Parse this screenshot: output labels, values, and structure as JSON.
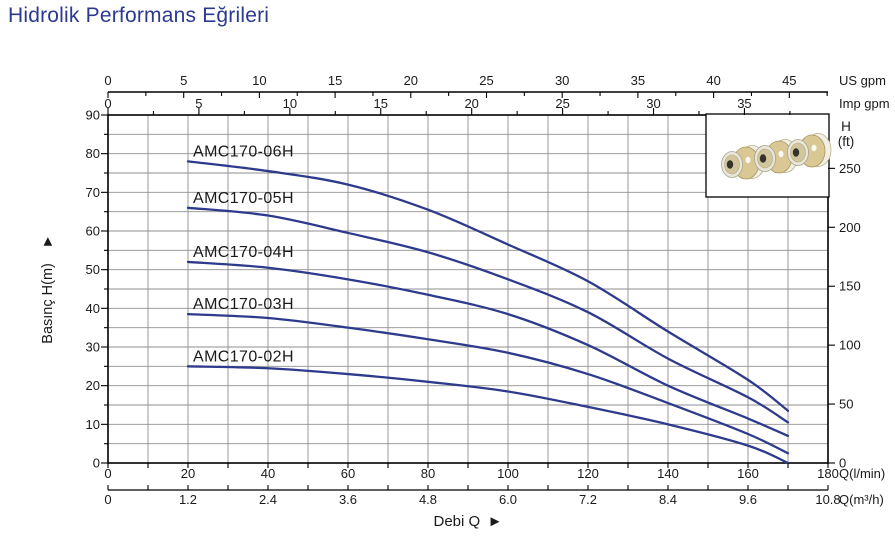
{
  "title": "Hidrolik Performans Eğrileri",
  "colors": {
    "title": "#2b3990",
    "curve": "#2e3a8c",
    "grid": "#8f8f8f",
    "axis": "#000000",
    "text": "#1a1a1a",
    "photo_bg": "#ffffff",
    "photo_tan": "#d9c894",
    "photo_tan_edge": "#a8985f",
    "photo_rim": "#f2efe6",
    "photo_front": "#e9e6da",
    "photo_hole": "#35332a"
  },
  "chart_data": {
    "type": "line",
    "title": "Hidrolik Performans Eğrileri",
    "xlabel": "Debi Q",
    "xlabel_arrow": "►",
    "x_lmin": [
      20,
      40,
      60,
      80,
      100,
      120,
      140,
      160,
      170
    ],
    "series": [
      {
        "name": "AMC170-06H",
        "values": [
          78,
          75.5,
          72,
          65.5,
          56.5,
          47,
          34,
          21.5,
          13.5
        ]
      },
      {
        "name": "AMC170-05H",
        "values": [
          66,
          64,
          59.5,
          54.5,
          47.5,
          39,
          27,
          17,
          10.5
        ]
      },
      {
        "name": "AMC170-04H",
        "values": [
          52,
          50.5,
          47.5,
          43.5,
          38.5,
          30.5,
          20,
          11.5,
          7
        ]
      },
      {
        "name": "AMC170-03H",
        "values": [
          38.5,
          37.5,
          35,
          32,
          28.5,
          23,
          15.5,
          7.5,
          2.5
        ]
      },
      {
        "name": "AMC170-02H",
        "values": [
          25,
          24.5,
          23,
          21,
          18.5,
          14.5,
          10,
          4.5,
          0
        ]
      }
    ],
    "grid": {
      "x_step_lmin": 10,
      "y_step_m": 5
    },
    "axes": {
      "left": {
        "label": "Basınç H(m)",
        "arrow": "►",
        "range": [
          0,
          90
        ],
        "ticks": [
          0,
          10,
          20,
          30,
          40,
          50,
          60,
          70,
          80,
          90
        ],
        "minor_step": 5
      },
      "right": {
        "label_line1": "H",
        "label_line2": "(ft)",
        "ticks": [
          0,
          50,
          100,
          150,
          200,
          250
        ],
        "m_per_ft": 0.3048
      },
      "bottom_lmin": {
        "unit": "Q(l/min)",
        "range": [
          0,
          180
        ],
        "ticks": [
          0,
          20,
          40,
          60,
          80,
          100,
          120,
          140,
          160,
          180
        ],
        "tick_step": 10
      },
      "bottom_m3h": {
        "unit": "Q(m³/h)",
        "labels": [
          "0",
          "1.2",
          "2.4",
          "3.6",
          "4.8",
          "6.0",
          "7.2",
          "8.4",
          "9.6",
          "10.8"
        ],
        "lmin_per_label": 20
      },
      "top_usgpm": {
        "unit": "US gpm",
        "ticks": [
          0,
          5,
          10,
          15,
          20,
          25,
          30,
          35,
          40,
          45
        ],
        "lmin_per_unit": 3.785
      },
      "top_impgpm": {
        "unit": "Imp gpm",
        "ticks": [
          0,
          5,
          10,
          15,
          20,
          25,
          30,
          35
        ],
        "lmin_per_unit": 4.546
      }
    },
    "photo": {
      "name": "impeller-photo",
      "items": 3
    }
  }
}
